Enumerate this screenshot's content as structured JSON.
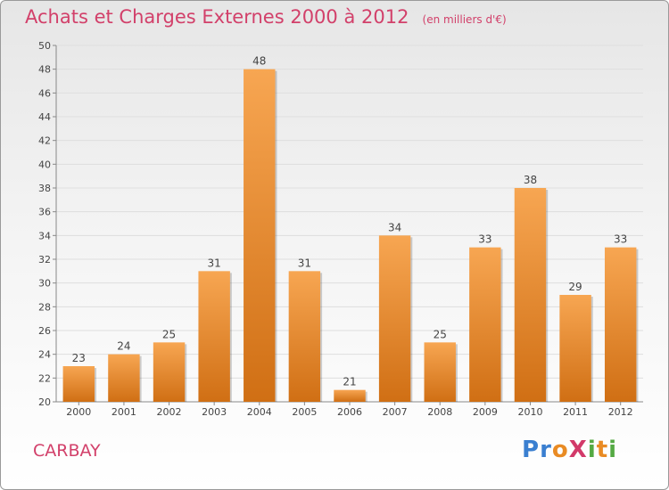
{
  "title": "Achats et Charges Externes 2000 à 2012",
  "subtitle": "(en milliers d'€)",
  "commune": "CARBAY",
  "brand": {
    "letters": [
      {
        "ch": "P",
        "color": "#3a7fd0"
      },
      {
        "ch": "r",
        "color": "#3a7fd0"
      },
      {
        "ch": "o",
        "color": "#e98b24"
      },
      {
        "ch": "X",
        "color": "#d23a6a"
      },
      {
        "ch": "i",
        "color": "#54a943"
      },
      {
        "ch": "t",
        "color": "#e98b24"
      },
      {
        "ch": "i",
        "color": "#54a943"
      }
    ]
  },
  "chart_data": {
    "type": "bar",
    "title": "Achats et Charges Externes 2000 à 2012",
    "subtitle": "(en milliers d'€)",
    "categories": [
      "2000",
      "2001",
      "2002",
      "2003",
      "2004",
      "2005",
      "2006",
      "2007",
      "2008",
      "2009",
      "2010",
      "2011",
      "2012"
    ],
    "values": [
      23,
      24,
      25,
      31,
      48,
      31,
      21,
      34,
      25,
      33,
      38,
      29,
      33
    ],
    "ylim": [
      20,
      50
    ],
    "yticks": [
      20,
      22,
      24,
      26,
      28,
      30,
      32,
      34,
      36,
      38,
      40,
      42,
      44,
      46,
      48,
      50
    ],
    "grid": true,
    "data_labels": true,
    "bar_color_top": "#f7a652",
    "bar_color_bottom": "#d06f14",
    "title_color": "#d2406a"
  }
}
